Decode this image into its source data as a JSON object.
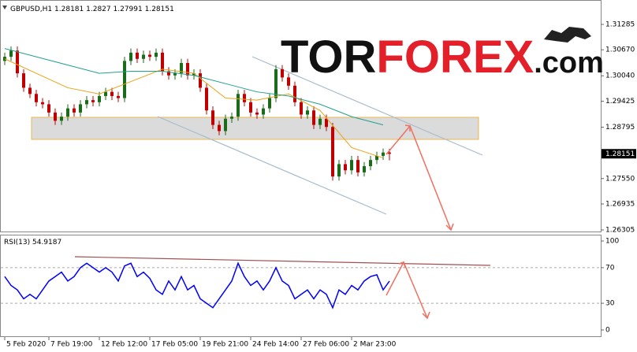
{
  "logo": {
    "left": "TOR",
    "accent": "FOREX",
    "right": ".com"
  },
  "chart_data": [
    {
      "type": "candlestick",
      "title": "GBPUSD,H1",
      "open": [
        1.304,
        1.305,
        1.3065,
        1.301,
        1.2975,
        1.296,
        1.294,
        1.2935,
        1.2915,
        1.2895,
        1.2905,
        1.2925,
        1.2915,
        1.2935,
        1.2945,
        1.294,
        1.2955,
        1.2965,
        1.2955,
        1.295,
        1.304,
        1.306,
        1.3045,
        1.3055,
        1.305,
        1.306,
        1.3015,
        1.3005,
        1.301,
        1.3035,
        1.3005,
        1.301,
        1.2975,
        1.292,
        1.2885,
        1.287,
        1.29,
        1.2905,
        1.296,
        1.294,
        1.2915,
        1.291,
        1.2925,
        1.295,
        1.302,
        1.3,
        1.298,
        1.294,
        1.291,
        1.292,
        1.2885,
        1.29,
        1.288,
        1.276,
        1.279,
        1.2775,
        1.28,
        1.277,
        1.2785,
        1.28,
        1.281,
        1.28181
      ],
      "high": [
        1.306,
        1.3075,
        1.3075,
        1.302,
        1.2985,
        1.297,
        1.295,
        1.2945,
        1.2925,
        1.2915,
        1.2935,
        1.2935,
        1.2945,
        1.2955,
        1.2955,
        1.2965,
        1.2975,
        1.2975,
        1.2965,
        1.305,
        1.307,
        1.307,
        1.3065,
        1.3065,
        1.307,
        1.307,
        1.3025,
        1.302,
        1.3045,
        1.3045,
        1.302,
        1.302,
        1.2985,
        1.293,
        1.2895,
        1.291,
        1.2915,
        1.297,
        1.297,
        1.295,
        1.2925,
        1.2935,
        1.296,
        1.303,
        1.303,
        1.301,
        1.299,
        1.295,
        1.293,
        1.293,
        1.291,
        1.291,
        1.289,
        1.28,
        1.28,
        1.281,
        1.281,
        1.2795,
        1.281,
        1.282,
        1.28281,
        1.2827
      ],
      "low": [
        1.303,
        1.304,
        1.3,
        1.2965,
        1.295,
        1.293,
        1.2925,
        1.2905,
        1.2885,
        1.2885,
        1.2895,
        1.2905,
        1.2905,
        1.2925,
        1.293,
        1.293,
        1.2945,
        1.2945,
        1.294,
        1.294,
        1.303,
        1.3035,
        1.3035,
        1.304,
        1.304,
        1.3005,
        1.2995,
        1.2995,
        1.3,
        1.2995,
        1.2995,
        1.2965,
        1.291,
        1.2875,
        1.286,
        1.286,
        1.289,
        1.2895,
        1.293,
        1.2905,
        1.29,
        1.29,
        1.2915,
        1.294,
        1.299,
        1.297,
        1.293,
        1.29,
        1.29,
        1.2875,
        1.2875,
        1.287,
        1.275,
        1.275,
        1.2765,
        1.2765,
        1.276,
        1.276,
        1.2775,
        1.279,
        1.28,
        1.27991
      ],
      "close": [
        1.305,
        1.3065,
        1.301,
        1.2975,
        1.296,
        1.294,
        1.2935,
        1.2915,
        1.2895,
        1.2905,
        1.2925,
        1.2915,
        1.2935,
        1.2945,
        1.294,
        1.2955,
        1.2965,
        1.2955,
        1.295,
        1.304,
        1.306,
        1.3045,
        1.3055,
        1.305,
        1.306,
        1.3015,
        1.3005,
        1.301,
        1.3035,
        1.3005,
        1.301,
        1.2975,
        1.292,
        1.2885,
        1.287,
        1.29,
        1.2905,
        1.296,
        1.294,
        1.2915,
        1.291,
        1.2925,
        1.295,
        1.302,
        1.3,
        1.298,
        1.294,
        1.291,
        1.292,
        1.2885,
        1.29,
        1.288,
        1.276,
        1.279,
        1.2775,
        1.28,
        1.277,
        1.2785,
        1.28,
        1.281,
        1.28181,
        1.28151
      ],
      "up_color": "#1a6b1a",
      "down_color": "#c00000",
      "series": [
        {
          "color": "#e8a317",
          "x": [
            0,
            5,
            10,
            15,
            20,
            25,
            30,
            35,
            40,
            45,
            50,
            55,
            60
          ],
          "values": [
            1.3045,
            1.301,
            1.2975,
            1.296,
            1.299,
            1.302,
            1.301,
            1.295,
            1.2945,
            1.296,
            1.292,
            1.283,
            1.2805
          ]
        },
        {
          "color": "#20a090",
          "x": [
            0,
            5,
            10,
            15,
            20,
            25,
            30,
            35,
            40,
            45,
            50,
            55,
            60
          ],
          "values": [
            1.307,
            1.305,
            1.303,
            1.301,
            1.3015,
            1.3015,
            1.3005,
            1.2985,
            1.2965,
            1.2955,
            1.2935,
            1.2905,
            1.2885
          ]
        }
      ],
      "xlim": [
        -0.75,
        94.5
      ],
      "xticks": [
        {
          "value": 0,
          "label": "5 Feb 2020"
        },
        {
          "value": 7,
          "label": "7 Feb 19:00"
        },
        {
          "value": 15,
          "label": "12 Feb 12:00"
        },
        {
          "value": 23,
          "label": "17 Feb 05:00"
        },
        {
          "value": 31,
          "label": "19 Feb 21:00"
        },
        {
          "value": 39,
          "label": "24 Feb 14:00"
        },
        {
          "value": 47,
          "label": "27 Feb 06:00"
        },
        {
          "value": 55,
          "label": "2 Mar 23:00"
        }
      ],
      "ylim": [
        1.26248,
        1.31838
      ],
      "yticks": [
        1.31285,
        {
          "value": 1.3067,
          "label": "1.30670"
        },
        {
          "value": 1.3004,
          "label": "1.30040"
        },
        1.29425,
        1.28795,
        {
          "value": 1.2755,
          "label": "1.27550"
        },
        1.26935,
        1.26305
      ]
    },
    {
      "type": "line",
      "title": "RSI(13)",
      "color": "#0000ff",
      "values": [
        60,
        50,
        45,
        35,
        40,
        35,
        45,
        55,
        60,
        65,
        55,
        60,
        70,
        75,
        70,
        65,
        70,
        65,
        55,
        72,
        75,
        60,
        65,
        58,
        45,
        40,
        55,
        45,
        60,
        45,
        50,
        35,
        30,
        25,
        35,
        45,
        55,
        75,
        60,
        50,
        55,
        45,
        55,
        70,
        55,
        50,
        35,
        40,
        45,
        35,
        45,
        40,
        25,
        45,
        40,
        50,
        45,
        55,
        60,
        62,
        45,
        54.9187
      ],
      "ylim": [
        0,
        100
      ],
      "yticks": [
        0,
        30,
        70,
        100
      ],
      "grid": true
    }
  ]
}
